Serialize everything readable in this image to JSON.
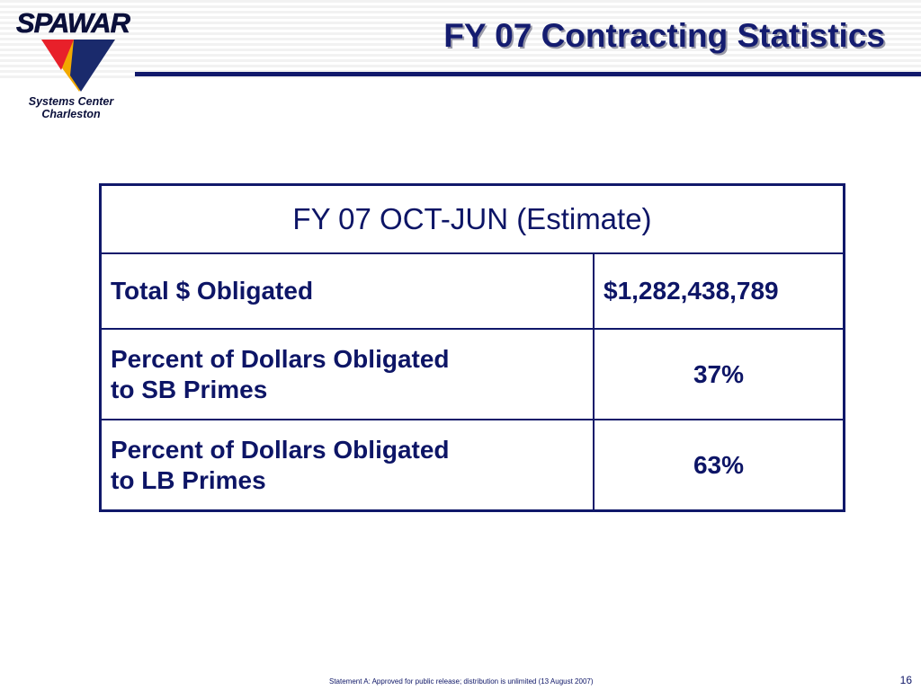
{
  "header": {
    "logo": {
      "wordmark": "SPAWAR",
      "subtitle_line1": "Systems Center",
      "subtitle_line2": "Charleston"
    },
    "title": "FY 07 Contracting Statistics"
  },
  "table": {
    "heading": "FY 07 OCT-JUN (Estimate)",
    "rows": [
      {
        "label_line1": "Total $ Obligated",
        "label_line2": "",
        "value": "$1,282,438,789"
      },
      {
        "label_line1": "Percent of Dollars Obligated",
        "label_line2": "to SB Primes",
        "value": "37%"
      },
      {
        "label_line1": "Percent of Dollars Obligated",
        "label_line2": "to LB Primes",
        "value": "63%"
      }
    ]
  },
  "footer": {
    "statement": "Statement A:  Approved for public release; distribution is unlimited (13 August 2007)",
    "page_number": "16"
  },
  "colors": {
    "text": "#0d1566",
    "rule": "#10186a",
    "logo_red": "#e8202a",
    "logo_navy": "#1a2a6c",
    "logo_gold": "#f2a900"
  }
}
